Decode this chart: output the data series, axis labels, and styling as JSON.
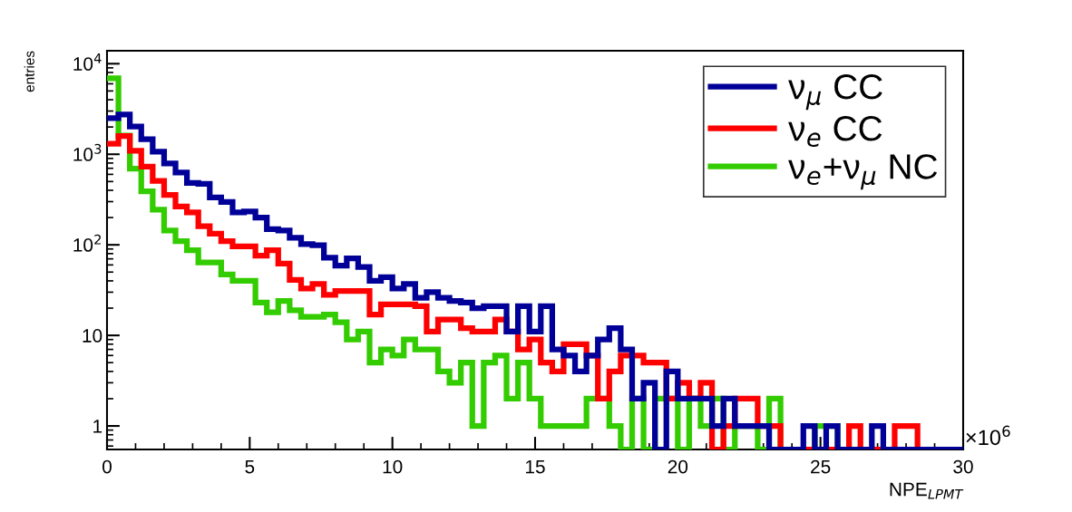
{
  "chart_data": {
    "type": "histogram",
    "xlabel": "NPE$_{LPMT}$",
    "ylabel": "entries",
    "annotations": [
      "×10$^{6}$"
    ],
    "bins": [
      0,
      0.4,
      0.8,
      1.2,
      1.6,
      2,
      2.4,
      2.8,
      3.2,
      3.6,
      4,
      4.4,
      4.8,
      5.2,
      5.6,
      6,
      6.4,
      6.8,
      7.2,
      7.6,
      8,
      8.4,
      8.8,
      9.2,
      9.6,
      10,
      10.4,
      10.8,
      11.2,
      11.6,
      12,
      12.4,
      12.8,
      13.2,
      13.6,
      14,
      14.4,
      14.8,
      15.2,
      15.6,
      16,
      16.4,
      16.8,
      17.2,
      17.6,
      18,
      18.4,
      18.8,
      19.2,
      19.6,
      20,
      20.4,
      20.8,
      21.2,
      21.6,
      22,
      22.4,
      22.8,
      23.2,
      23.6,
      24,
      24.4,
      24.8,
      25.2,
      25.6,
      26,
      26.4,
      26.8,
      27.2,
      27.6,
      28,
      28.4,
      28.8,
      29.2,
      29.6,
      30
    ],
    "series": [
      {
        "name": "ν$_{μ}$ CC",
        "color": "#000099",
        "values": [
          2500,
          2750,
          2030,
          1470,
          1070,
          790,
          627,
          483,
          472,
          334,
          298,
          228,
          233,
          200,
          149,
          144,
          120,
          102,
          99,
          72,
          59,
          71,
          57,
          40,
          44,
          33,
          37,
          26,
          30,
          26,
          24,
          23,
          20,
          21,
          21,
          11,
          21,
          11,
          21,
          7,
          6,
          4,
          6,
          9,
          12,
          7,
          2,
          3,
          null,
          4,
          2,
          2,
          2,
          1,
          2,
          1,
          1,
          1,
          null,
          null,
          null,
          1,
          null,
          1,
          null,
          null,
          null,
          1,
          null,
          null,
          null,
          null,
          null,
          null,
          null
        ]
      },
      {
        "name": "ν$_{e}$ CC",
        "color": "#ff0000",
        "values": [
          1310,
          1590,
          1096,
          731,
          509,
          355,
          265,
          228,
          161,
          133,
          110,
          96,
          96,
          76,
          87,
          62,
          41,
          33,
          37,
          28,
          31,
          31,
          31,
          17,
          22,
          22,
          22,
          21,
          11,
          15,
          15,
          12,
          11,
          11,
          15,
          11,
          7,
          9,
          5,
          4,
          8,
          8,
          6,
          2,
          4,
          6,
          6,
          5,
          5,
          2,
          3,
          2,
          3,
          null,
          1,
          2,
          2,
          1,
          1,
          null,
          null,
          null,
          null,
          null,
          null,
          1,
          null,
          null,
          null,
          1,
          1,
          null,
          null,
          null,
          null
        ]
      },
      {
        "name": "ν$_{e}$+ν$_{μ}$ NC",
        "color": "#33cc00",
        "values": [
          6920,
          1610,
          692,
          389,
          245,
          144,
          110,
          87,
          64,
          64,
          47,
          40,
          40,
          23,
          18,
          24,
          19,
          16,
          16,
          17,
          14,
          9,
          11,
          5,
          7,
          6,
          9,
          7,
          7,
          4,
          3,
          5,
          1,
          5,
          6,
          2,
          5,
          2,
          1,
          1,
          1,
          1,
          2,
          2,
          1,
          null,
          2,
          null,
          2,
          2,
          null,
          2,
          1,
          2,
          null,
          1,
          1,
          null,
          2,
          null,
          null,
          null,
          1,
          1,
          null,
          null,
          null,
          null,
          null,
          null,
          null,
          null,
          null,
          null,
          null
        ]
      }
    ],
    "xlim": [
      0,
      30
    ],
    "xticks": [
      0,
      5,
      10,
      15,
      20,
      25,
      30
    ],
    "log": "y",
    "ylim": [
      0.55,
      13900
    ],
    "yticks": [
      1,
      10,
      {
        "value": 100,
        "label": "10$^{2}$"
      },
      {
        "value": 1000,
        "label": "10$^{3}$"
      },
      {
        "value": 10000,
        "label": "10$^{4}$"
      }
    ],
    "grid": false,
    "legend": "top right",
    "line_style": "solid"
  }
}
